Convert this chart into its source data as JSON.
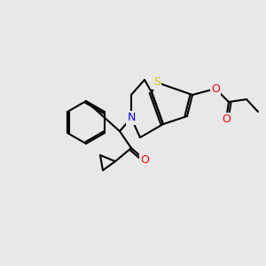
{
  "background_color": "#e8e8e8",
  "atom_colors": {
    "O": "#ff0000",
    "N": "#0000ff",
    "S": "#cccc00",
    "C": "#000000"
  },
  "bond_width": 1.5,
  "font_size": 9
}
